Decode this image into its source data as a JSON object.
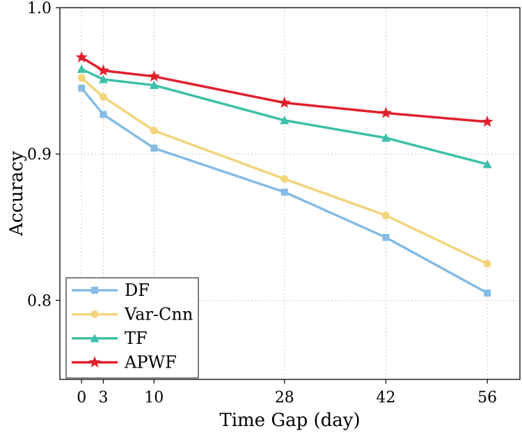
{
  "chart_data": {
    "type": "line",
    "title": "",
    "xlabel": "Time Gap (day)",
    "ylabel": "Accuracy",
    "x": [
      0,
      3,
      10,
      28,
      42,
      56
    ],
    "xticks": [
      "0",
      "3",
      "10",
      "28",
      "42",
      "56"
    ],
    "yticks": [
      "0.8",
      "0.9",
      "1.0"
    ],
    "ytick_values": [
      0.8,
      0.9,
      1.0
    ],
    "xlim": [
      -3,
      60.5
    ],
    "ylim": [
      0.746,
      1.0
    ],
    "grid": true,
    "legend_position": "bottom-left",
    "series": [
      {
        "name": "DF",
        "values": [
          0.945,
          0.927,
          0.904,
          0.874,
          0.843,
          0.805
        ],
        "color": "#85bbe6",
        "marker": "square"
      },
      {
        "name": "Var-Cnn",
        "values": [
          0.952,
          0.939,
          0.916,
          0.883,
          0.858,
          0.825
        ],
        "color": "#f2d47c",
        "marker": "circle"
      },
      {
        "name": "TF",
        "values": [
          0.958,
          0.951,
          0.947,
          0.923,
          0.911,
          0.893
        ],
        "color": "#3dbfa8",
        "marker": "triangle"
      },
      {
        "name": "APWF",
        "values": [
          0.966,
          0.957,
          0.953,
          0.935,
          0.928,
          0.922
        ],
        "color": "#e0202c",
        "marker": "star"
      }
    ]
  }
}
